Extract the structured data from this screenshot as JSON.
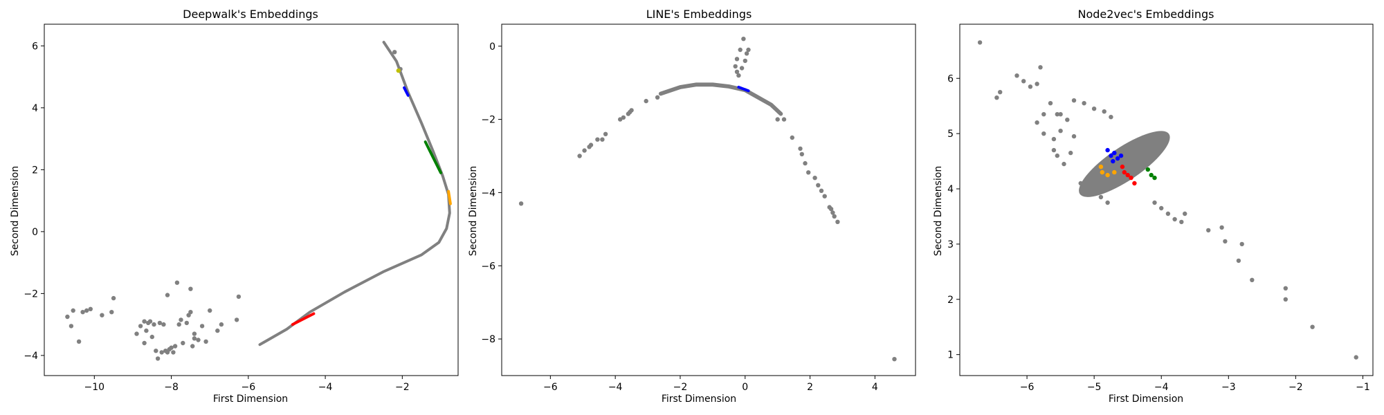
{
  "colors": {
    "background": "#ffffff",
    "base": "#808080",
    "blue": "#0000ff",
    "green": "#008000",
    "orange": "#ffa500",
    "red": "#ff0000",
    "yellow": "#bfbf00"
  },
  "chart_data": [
    {
      "type": "scatter",
      "title": "Deepwalk's Embeddings",
      "xlabel": "First Dimension",
      "ylabel": "Second Dimension",
      "xlim": [
        -11.3,
        -0.55
      ],
      "ylim": [
        -4.65,
        6.7
      ],
      "xticks": [
        -10,
        -8,
        -6,
        -4,
        -2
      ],
      "yticks": [
        -4,
        -2,
        0,
        2,
        4,
        6
      ],
      "grid": false,
      "legend": "none",
      "curves": [
        {
          "color": "#808080",
          "width": 0.06,
          "points": [
            [
              -2.48,
              6.12
            ],
            [
              -2.15,
              5.5
            ],
            [
              -1.85,
              4.5
            ],
            [
              -1.5,
              3.5
            ],
            [
              -1.2,
              2.6
            ],
            [
              -0.95,
              1.8
            ],
            [
              -0.8,
              1.2
            ],
            [
              -0.77,
              0.6
            ],
            [
              -0.85,
              0.1
            ],
            [
              -1.05,
              -0.35
            ],
            [
              -1.5,
              -0.75
            ],
            [
              -2.5,
              -1.3
            ],
            [
              -3.5,
              -1.95
            ],
            [
              -4.4,
              -2.6
            ],
            [
              -5.0,
              -3.15
            ],
            [
              -5.7,
              -3.65
            ]
          ]
        },
        {
          "color": "#0000ff",
          "width": 0.05,
          "points": [
            [
              -1.95,
              4.65
            ],
            [
              -1.85,
              4.4
            ]
          ]
        },
        {
          "color": "#008000",
          "width": 0.04,
          "points": [
            [
              -1.4,
              2.9
            ],
            [
              -1.2,
              2.4
            ],
            [
              -1.0,
              1.9
            ]
          ]
        },
        {
          "color": "#ffa500",
          "width": 0.09,
          "points": [
            [
              -0.8,
              1.3
            ],
            [
              -0.75,
              0.9
            ]
          ]
        },
        {
          "color": "#ff0000",
          "width": 0.05,
          "points": [
            [
              -4.85,
              -3.0
            ],
            [
              -4.3,
              -2.65
            ]
          ]
        }
      ],
      "scatter": [
        {
          "color": "#808080",
          "points": [
            [
              -10.7,
              -2.75
            ],
            [
              -10.6,
              -3.05
            ],
            [
              -10.55,
              -2.55
            ],
            [
              -10.4,
              -3.55
            ],
            [
              -10.3,
              -2.6
            ],
            [
              -10.2,
              -2.55
            ],
            [
              -10.1,
              -2.5
            ],
            [
              -9.8,
              -2.7
            ],
            [
              -9.55,
              -2.6
            ],
            [
              -9.5,
              -2.15
            ],
            [
              -8.8,
              -3.05
            ],
            [
              -8.7,
              -2.9
            ],
            [
              -8.65,
              -3.2
            ],
            [
              -8.6,
              -2.95
            ],
            [
              -8.5,
              -3.4
            ],
            [
              -8.45,
              -3.0
            ],
            [
              -8.4,
              -3.85
            ],
            [
              -8.35,
              -4.1
            ],
            [
              -8.3,
              -2.95
            ],
            [
              -8.25,
              -3.9
            ],
            [
              -8.2,
              -3.0
            ],
            [
              -8.15,
              -3.85
            ],
            [
              -8.1,
              -3.9
            ],
            [
              -8.05,
              -3.8
            ],
            [
              -8.0,
              -3.75
            ],
            [
              -7.95,
              -3.9
            ],
            [
              -7.9,
              -3.7
            ],
            [
              -7.8,
              -3.0
            ],
            [
              -7.75,
              -2.85
            ],
            [
              -7.7,
              -3.6
            ],
            [
              -7.6,
              -2.95
            ],
            [
              -7.5,
              -2.6
            ],
            [
              -7.45,
              -3.7
            ],
            [
              -7.4,
              -3.45
            ],
            [
              -7.3,
              -3.5
            ],
            [
              -7.2,
              -3.05
            ],
            [
              -7.1,
              -3.55
            ],
            [
              -7.0,
              -2.55
            ],
            [
              -8.1,
              -2.05
            ],
            [
              -7.85,
              -1.65
            ],
            [
              -7.55,
              -2.7
            ],
            [
              -7.5,
              -1.85
            ],
            [
              -7.4,
              -3.3
            ],
            [
              -6.8,
              -3.2
            ],
            [
              -6.7,
              -3.0
            ],
            [
              -6.3,
              -2.85
            ],
            [
              -6.25,
              -2.1
            ],
            [
              -8.55,
              -2.9
            ],
            [
              -8.9,
              -3.3
            ],
            [
              -8.7,
              -3.6
            ],
            [
              -2.2,
              5.8
            ],
            [
              -2.05,
              5.25
            ]
          ]
        },
        {
          "color": "#bfbf00",
          "points": [
            [
              -2.1,
              5.2
            ]
          ]
        }
      ]
    },
    {
      "type": "scatter",
      "title": "LINE's Embeddings",
      "xlabel": "First Dimension",
      "ylabel": "Second Dimension",
      "xlim": [
        -7.5,
        5.25
      ],
      "ylim": [
        -9.0,
        0.6
      ],
      "xticks": [
        -6,
        -4,
        -2,
        0,
        2,
        4
      ],
      "yticks": [
        -8,
        -6,
        -4,
        -2,
        0
      ],
      "grid": false,
      "legend": "none",
      "curves": [
        {
          "color": "#808080",
          "width": 0.11,
          "points": [
            [
              -2.6,
              -1.3
            ],
            [
              -2.0,
              -1.12
            ],
            [
              -1.5,
              -1.05
            ],
            [
              -1.0,
              -1.05
            ],
            [
              -0.5,
              -1.1
            ],
            [
              0.0,
              -1.2
            ],
            [
              0.4,
              -1.4
            ],
            [
              0.8,
              -1.6
            ],
            [
              1.1,
              -1.85
            ]
          ]
        },
        {
          "color": "#0000ff",
          "width": 0.06,
          "points": [
            [
              -0.2,
              -1.12
            ],
            [
              0.1,
              -1.22
            ]
          ]
        }
      ],
      "scatter": [
        {
          "color": "#808080",
          "points": [
            [
              -6.9,
              -4.3
            ],
            [
              -5.1,
              -3.0
            ],
            [
              -4.95,
              -2.85
            ],
            [
              -4.8,
              -2.75
            ],
            [
              -4.75,
              -2.7
            ],
            [
              -4.55,
              -2.55
            ],
            [
              -4.4,
              -2.55
            ],
            [
              -4.3,
              -2.4
            ],
            [
              -3.85,
              -2.0
            ],
            [
              -3.75,
              -1.95
            ],
            [
              -3.6,
              -1.85
            ],
            [
              -3.55,
              -1.8
            ],
            [
              -3.5,
              -1.75
            ],
            [
              -3.05,
              -1.5
            ],
            [
              -2.7,
              -1.4
            ],
            [
              -0.3,
              -0.55
            ],
            [
              -0.25,
              -0.35
            ],
            [
              -0.2,
              -0.8
            ],
            [
              -0.15,
              -0.1
            ],
            [
              -0.1,
              -0.6
            ],
            [
              -0.05,
              0.2
            ],
            [
              0.0,
              -0.4
            ],
            [
              0.05,
              -0.2
            ],
            [
              0.1,
              -0.1
            ],
            [
              -0.25,
              -0.7
            ],
            [
              1.45,
              -2.5
            ],
            [
              1.7,
              -2.8
            ],
            [
              1.75,
              -2.95
            ],
            [
              1.85,
              -3.2
            ],
            [
              1.95,
              -3.45
            ],
            [
              2.15,
              -3.6
            ],
            [
              2.25,
              -3.8
            ],
            [
              2.35,
              -3.95
            ],
            [
              2.45,
              -4.1
            ],
            [
              2.6,
              -4.4
            ],
            [
              2.65,
              -4.45
            ],
            [
              2.7,
              -4.55
            ],
            [
              2.75,
              -4.65
            ],
            [
              2.85,
              -4.8
            ],
            [
              1.0,
              -2.0
            ],
            [
              1.2,
              -2.0
            ],
            [
              4.6,
              -8.55
            ]
          ]
        }
      ]
    },
    {
      "type": "scatter",
      "title": "Node2vec's Embeddings",
      "xlabel": "First Dimension",
      "ylabel": "Second Dimension",
      "xlim": [
        -7.0,
        -0.85
      ],
      "ylim": [
        0.62,
        6.98
      ],
      "xticks": [
        -6,
        -5,
        -4,
        -3,
        -2,
        -1
      ],
      "yticks": [
        1,
        2,
        3,
        4,
        5,
        6
      ],
      "grid": false,
      "legend": "none",
      "cloud": {
        "color": "#808080",
        "center": [
          -4.55,
          4.45
        ],
        "rx": 0.8,
        "ry": 0.3,
        "angle_deg": -34
      },
      "scatter": [
        {
          "color": "#808080",
          "points": [
            [
              -6.7,
              6.65
            ],
            [
              -6.45,
              5.65
            ],
            [
              -6.4,
              5.75
            ],
            [
              -6.15,
              6.05
            ],
            [
              -6.05,
              5.95
            ],
            [
              -5.95,
              5.85
            ],
            [
              -5.85,
              5.9
            ],
            [
              -5.8,
              6.2
            ],
            [
              -5.65,
              5.55
            ],
            [
              -5.55,
              5.35
            ],
            [
              -5.5,
              5.35
            ],
            [
              -5.75,
              5.35
            ],
            [
              -5.85,
              5.2
            ],
            [
              -5.6,
              4.9
            ],
            [
              -5.5,
              5.05
            ],
            [
              -5.4,
              5.25
            ],
            [
              -5.3,
              5.6
            ],
            [
              -5.15,
              5.55
            ],
            [
              -5.0,
              5.45
            ],
            [
              -4.85,
              5.4
            ],
            [
              -4.75,
              5.3
            ],
            [
              -5.55,
              4.6
            ],
            [
              -5.6,
              4.7
            ],
            [
              -5.45,
              4.45
            ],
            [
              -5.35,
              4.65
            ],
            [
              -5.2,
              4.1
            ],
            [
              -5.15,
              3.95
            ],
            [
              -4.9,
              3.85
            ],
            [
              -4.8,
              3.75
            ],
            [
              -4.1,
              3.75
            ],
            [
              -4.0,
              3.65
            ],
            [
              -3.9,
              3.55
            ],
            [
              -3.8,
              3.45
            ],
            [
              -3.7,
              3.4
            ],
            [
              -3.65,
              3.55
            ],
            [
              -3.3,
              3.25
            ],
            [
              -3.1,
              3.3
            ],
            [
              -3.05,
              3.05
            ],
            [
              -2.8,
              3.0
            ],
            [
              -2.85,
              2.7
            ],
            [
              -2.65,
              2.35
            ],
            [
              -2.15,
              2.2
            ],
            [
              -2.15,
              2.0
            ],
            [
              -1.75,
              1.5
            ],
            [
              -1.1,
              0.95
            ],
            [
              -5.75,
              5.0
            ],
            [
              -5.3,
              4.95
            ]
          ]
        },
        {
          "color": "#0000ff",
          "points": [
            [
              -4.8,
              4.7
            ],
            [
              -4.75,
              4.6
            ],
            [
              -4.7,
              4.65
            ],
            [
              -4.65,
              4.55
            ],
            [
              -4.72,
              4.5
            ],
            [
              -4.6,
              4.6
            ]
          ]
        },
        {
          "color": "#ff0000",
          "points": [
            [
              -4.58,
              4.4
            ],
            [
              -4.55,
              4.3
            ],
            [
              -4.5,
              4.25
            ],
            [
              -4.45,
              4.2
            ],
            [
              -4.4,
              4.1
            ]
          ]
        },
        {
          "color": "#ffa500",
          "points": [
            [
              -4.9,
              4.4
            ],
            [
              -4.88,
              4.3
            ],
            [
              -4.8,
              4.25
            ],
            [
              -4.7,
              4.3
            ]
          ]
        },
        {
          "color": "#008000",
          "points": [
            [
              -4.2,
              4.35
            ],
            [
              -4.15,
              4.25
            ],
            [
              -4.1,
              4.2
            ]
          ]
        }
      ]
    }
  ]
}
